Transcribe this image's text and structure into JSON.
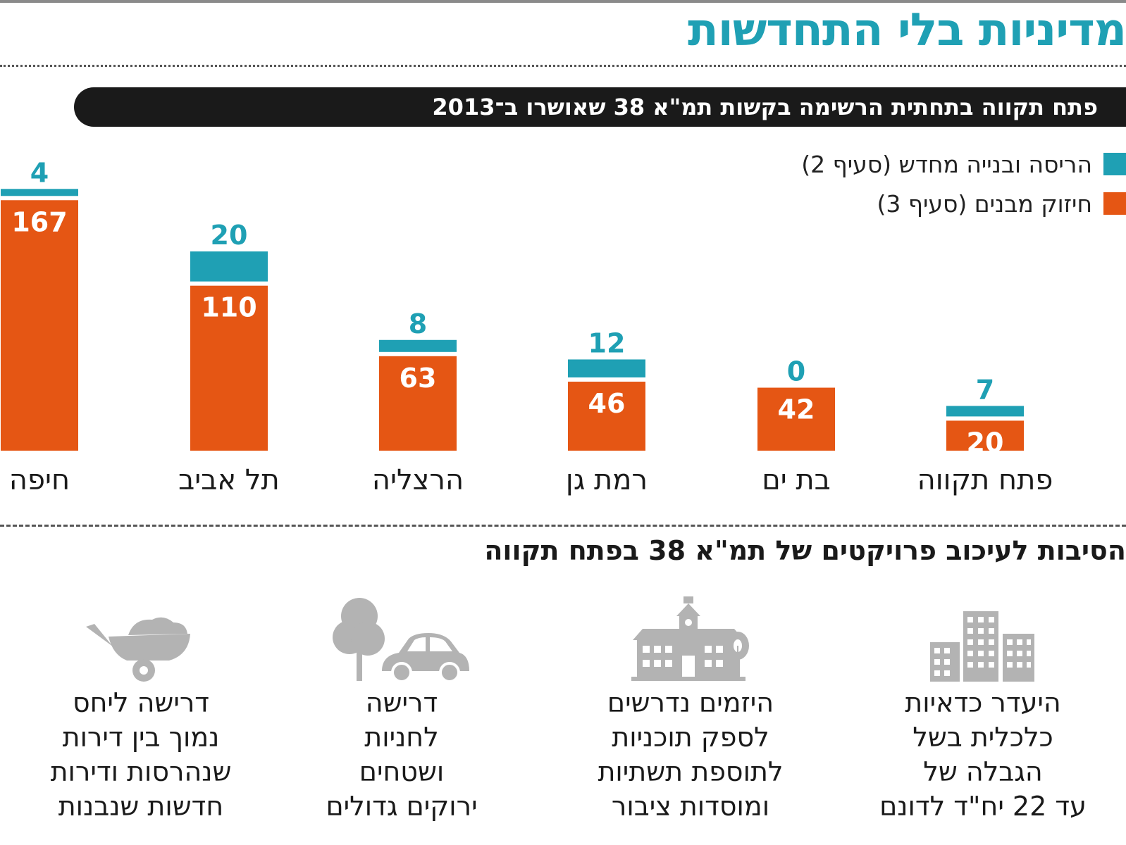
{
  "header": {
    "title": "מדיניות בלי התחדשות",
    "subtitle": "פתח תקווה בתחתית הרשימה בקשות תמ\"א 38 שאושרו ב־2013"
  },
  "legend": {
    "demolition_label": "הריסה ובנייה מחדש (סעיף 2)",
    "reinforcement_label": "חיזוק מבנים (סעיף 3)"
  },
  "colors": {
    "accent_teal": "#1fa0b4",
    "accent_orange": "#e55614",
    "icon_gray": "#b3b3b3",
    "dark": "#1a1a1a"
  },
  "chart_data": {
    "type": "bar",
    "stacked": true,
    "categories": [
      "חיפה",
      "תל אביב",
      "הרצליה",
      "רמת גן",
      "בת ים",
      "פתח תקווה"
    ],
    "series": [
      {
        "name": "חיזוק מבנים (סעיף 3)",
        "color": "#e55614",
        "values": [
          167,
          110,
          63,
          46,
          42,
          20
        ]
      },
      {
        "name": "הריסה ובנייה מחדש (סעיף 2)",
        "color": "#1fa0b4",
        "values": [
          4,
          20,
          8,
          12,
          0,
          7
        ]
      }
    ],
    "legend_position": "top-right",
    "grid": false,
    "ylim": [
      0,
      171
    ]
  },
  "reasons": {
    "title": "הסיבות לעיכוב פרויקטים של תמ\"א 38 בפתח תקווה",
    "items": [
      {
        "icon": "buildings-icon",
        "text": "היעדר כדאיות\nכלכלית בשל\nהגבלה של\nעד 22 יח\"ד לדונם"
      },
      {
        "icon": "school-building-icon",
        "text": "היזמים נדרשים\nלספק תוכניות\nלתוספת תשתיות\nומוסדות ציבור"
      },
      {
        "icon": "tree-and-car-icon",
        "text": "דרישה\nלחניות\nושטחים\nירוקים גדולים"
      },
      {
        "icon": "wheelbarrow-icon",
        "text": "דרישה ליחס\nנמוך בין דירות\nשנהרסות ודירות\nחדשות שנבנות"
      }
    ]
  }
}
